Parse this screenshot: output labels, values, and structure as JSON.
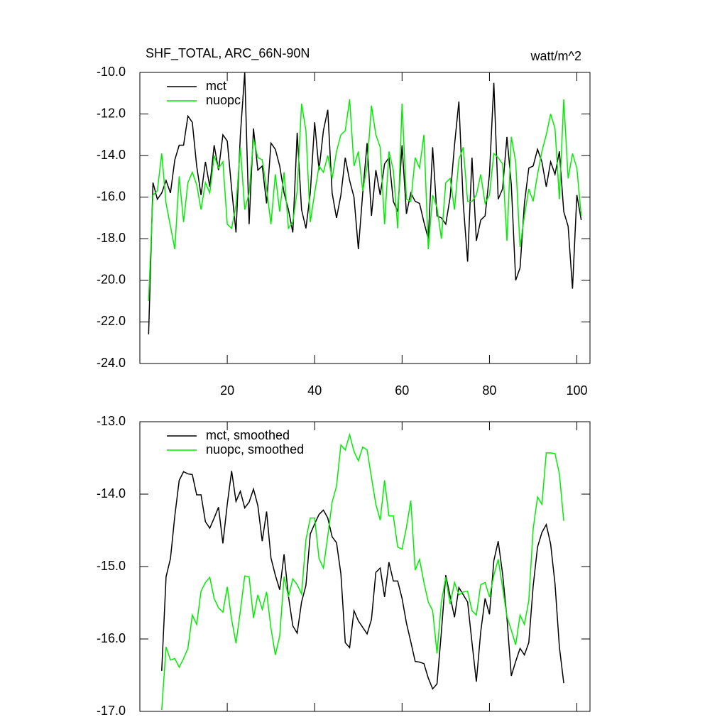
{
  "chart_data": [
    {
      "type": "line",
      "title": "SHF_TOTAL, ARC_66N-90N",
      "units": "watt/m^2",
      "x": [
        2,
        3,
        4,
        5,
        6,
        7,
        8,
        9,
        10,
        11,
        12,
        13,
        14,
        15,
        16,
        17,
        18,
        19,
        20,
        21,
        22,
        23,
        24,
        25,
        26,
        27,
        28,
        29,
        30,
        31,
        32,
        33,
        34,
        35,
        36,
        37,
        38,
        39,
        40,
        41,
        42,
        43,
        44,
        45,
        46,
        47,
        48,
        49,
        50,
        51,
        52,
        53,
        54,
        55,
        56,
        57,
        58,
        59,
        60,
        61,
        62,
        63,
        64,
        65,
        66,
        67,
        68,
        69,
        70,
        71,
        72,
        73,
        74,
        75,
        76,
        77,
        78,
        79,
        80,
        81,
        82,
        83,
        84,
        85,
        86,
        87,
        88,
        89,
        90,
        91,
        92,
        93,
        94,
        95,
        96,
        97,
        98,
        99,
        100,
        101
      ],
      "series": [
        {
          "name": "mct",
          "color": "#000000",
          "values": [
            -22.6,
            -15.3,
            -16.1,
            -15.8,
            -15.2,
            -15.8,
            -14.2,
            -13.5,
            -13.5,
            -12.1,
            -12.4,
            -14.5,
            -15.9,
            -14.3,
            -15.5,
            -13.5,
            -14.7,
            -13.0,
            -13.3,
            -15.6,
            -17.7,
            -13.0,
            -10.0,
            -17.3,
            -12.7,
            -14.7,
            -14.5,
            -16.3,
            -13.4,
            -13.7,
            -14.5,
            -15.8,
            -16.6,
            -17.7,
            -12.9,
            -16.6,
            -17.5,
            -15.8,
            -12.4,
            -14.7,
            -12.8,
            -11.8,
            -15.8,
            -17.0,
            -15.9,
            -14.1,
            -15.2,
            -16.0,
            -18.5,
            -15.8,
            -13.4,
            -16.9,
            -14.7,
            -15.9,
            -14.4,
            -14.1,
            -16.2,
            -16.7,
            -13.5,
            -16.8,
            -15.8,
            -16.2,
            -16.3,
            -17.2,
            -18.0,
            -13.6,
            -16.9,
            -17.0,
            -17.3,
            -16.0,
            -13.5,
            -11.4,
            -16.3,
            -19.1,
            -14.1,
            -18.1,
            -17.1,
            -16.9,
            -14.9,
            -10.5,
            -16.1,
            -15.6,
            -13.1,
            -15.4,
            -20.0,
            -19.4,
            -16.3,
            -14.6,
            -14.5,
            -13.7,
            -14.3,
            -15.5,
            -14.3,
            -14.9,
            -13.8,
            -16.7,
            -17.4,
            -20.4,
            -15.9,
            -17.1
          ]
        },
        {
          "name": "nuopc",
          "color": "#00ee00",
          "values": [
            -21.0,
            -15.9,
            -15.7,
            -13.9,
            -16.3,
            -17.4,
            -18.5,
            -15.0,
            -17.2,
            -15.3,
            -14.8,
            -15.4,
            -16.6,
            -15.3,
            -15.8,
            -14.0,
            -14.6,
            -14.3,
            -17.3,
            -17.5,
            -16.4,
            -13.6,
            -16.6,
            -15.8,
            -13.2,
            -14.1,
            -14.2,
            -15.6,
            -17.3,
            -14.9,
            -16.7,
            -14.8,
            -17.5,
            -17.2,
            -15.7,
            -11.5,
            -12.8,
            -17.2,
            -15.8,
            -14.5,
            -14.8,
            -14.0,
            -15.1,
            -13.8,
            -13.0,
            -12.8,
            -11.3,
            -14.5,
            -13.8,
            -15.7,
            -14.5,
            -11.6,
            -13.0,
            -13.6,
            -17.3,
            -13.8,
            -14.7,
            -17.5,
            -11.5,
            -16.1,
            -16.2,
            -14.1,
            -14.6,
            -13.0,
            -18.5,
            -15.9,
            -16.5,
            -18.0,
            -15.3,
            -15.1,
            -16.6,
            -14.2,
            -13.6,
            -16.2,
            -16.2,
            -15.9,
            -14.9,
            -16.3,
            -15.9,
            -13.9,
            -14.1,
            -14.4,
            -18.1,
            -13.1,
            -14.3,
            -18.4,
            -16.9,
            -15.6,
            -16.2,
            -14.9,
            -13.8,
            -13.0,
            -12.0,
            -12.7,
            -16.1,
            -11.3,
            -15.1,
            -13.9,
            -14.6,
            -16.9
          ]
        }
      ],
      "xlim": [
        0,
        103
      ],
      "ylim": [
        -24,
        -10
      ],
      "xticks": [
        20,
        40,
        60,
        80,
        100
      ],
      "yticks": [
        {
          "value": -10,
          "label": "-10.0"
        },
        {
          "value": -12,
          "label": "-12.0"
        },
        {
          "value": -14,
          "label": "-14.0"
        },
        {
          "value": -16,
          "label": "-16.0"
        },
        {
          "value": -18,
          "label": "-18.0"
        },
        {
          "value": -20,
          "label": "-20.0"
        },
        {
          "value": -22,
          "label": "-22.0"
        },
        {
          "value": -24,
          "label": "-24.0"
        }
      ],
      "legend": "upper-left"
    },
    {
      "type": "line",
      "x": [
        5,
        6,
        7,
        8,
        9,
        10,
        11,
        12,
        13,
        14,
        15,
        16,
        17,
        18,
        19,
        20,
        21,
        22,
        23,
        24,
        25,
        26,
        27,
        28,
        29,
        30,
        31,
        32,
        33,
        34,
        35,
        36,
        37,
        38,
        39,
        40,
        41,
        42,
        43,
        44,
        45,
        46,
        47,
        48,
        49,
        50,
        51,
        52,
        53,
        54,
        55,
        56,
        57,
        58,
        59,
        60,
        61,
        62,
        63,
        64,
        65,
        66,
        67,
        68,
        69,
        70,
        71,
        72,
        73,
        74,
        75,
        76,
        77,
        78,
        79,
        80,
        81,
        82,
        83,
        84,
        85,
        86,
        87,
        88,
        89,
        90,
        91,
        92,
        93,
        94,
        95,
        96,
        97
      ],
      "series": [
        {
          "name": "mct, smoothed",
          "color": "#000000",
          "values": [
            -16.44,
            -15.14,
            -14.89,
            -14.3,
            -13.81,
            -13.69,
            -13.72,
            -13.73,
            -14.01,
            -14.01,
            -14.38,
            -14.47,
            -14.33,
            -14.18,
            -14.68,
            -14.14,
            -13.68,
            -14.1,
            -13.96,
            -14.19,
            -14.11,
            -13.93,
            -14.16,
            -14.65,
            -14.24,
            -14.88,
            -15.12,
            -15.32,
            -14.83,
            -15.41,
            -15.82,
            -15.92,
            -15.49,
            -15.26,
            -14.55,
            -14.41,
            -14.28,
            -14.22,
            -14.33,
            -14.59,
            -14.67,
            -15.1,
            -16.05,
            -16.12,
            -15.61,
            -15.75,
            -15.84,
            -15.93,
            -15.73,
            -15.08,
            -15.02,
            -15.42,
            -14.94,
            -15.2,
            -15.2,
            -15.44,
            -15.78,
            -16.04,
            -16.31,
            -16.32,
            -16.34,
            -16.54,
            -16.69,
            -16.62,
            -15.9,
            -15.12,
            -15.41,
            -15.7,
            -15.29,
            -15.39,
            -15.49,
            -16.05,
            -16.59,
            -15.9,
            -15.44,
            -15.66,
            -14.92,
            -14.65,
            -15.1,
            -15.71,
            -16.51,
            -16.31,
            -16.13,
            -16.22,
            -16.05,
            -15.27,
            -14.73,
            -14.53,
            -14.42,
            -14.69,
            -15.24,
            -16.11,
            -16.61
          ]
        },
        {
          "name": "nuopc, smoothed",
          "color": "#00ee00",
          "values": [
            -16.98,
            -16.11,
            -16.29,
            -16.27,
            -16.39,
            -16.27,
            -16.13,
            -15.67,
            -15.8,
            -15.34,
            -15.22,
            -15.15,
            -15.44,
            -15.57,
            -15.63,
            -15.28,
            -15.73,
            -16.06,
            -15.61,
            -15.13,
            -15.14,
            -15.71,
            -15.39,
            -15.59,
            -15.35,
            -15.85,
            -16.22,
            -15.96,
            -15.14,
            -15.42,
            -15.17,
            -15.25,
            -15.38,
            -14.63,
            -14.33,
            -14.33,
            -14.89,
            -15.02,
            -14.58,
            -14.11,
            -13.89,
            -13.32,
            -13.39,
            -13.18,
            -13.41,
            -13.54,
            -13.35,
            -13.39,
            -13.77,
            -14.14,
            -14.36,
            -13.81,
            -14.3,
            -14.3,
            -14.73,
            -14.76,
            -14.46,
            -14.09,
            -15.05,
            -14.9,
            -15.22,
            -15.49,
            -15.61,
            -16.2,
            -15.49,
            -15.15,
            -15.52,
            -15.22,
            -15.39,
            -15.35,
            -15.34,
            -15.61,
            -15.67,
            -15.25,
            -15.22,
            -15.42,
            -15.12,
            -14.9,
            -15.29,
            -15.69,
            -15.88,
            -16.08,
            -15.67,
            -15.8,
            -15.47,
            -14.48,
            -14.04,
            -14.14,
            -13.43,
            -13.43,
            -13.44,
            -13.72,
            -14.37
          ]
        }
      ],
      "xlim": [
        0,
        103
      ],
      "ylim": [
        -17,
        -13
      ],
      "xticks": [
        20,
        40,
        60,
        80,
        100
      ],
      "yticks": [
        {
          "value": -13,
          "label": "-13.0"
        },
        {
          "value": -14,
          "label": "-14.0"
        },
        {
          "value": -15,
          "label": "-15.0"
        },
        {
          "value": -16,
          "label": "-16.0"
        },
        {
          "value": -17,
          "label": "-17.0"
        }
      ],
      "legend": "upper-left"
    }
  ]
}
